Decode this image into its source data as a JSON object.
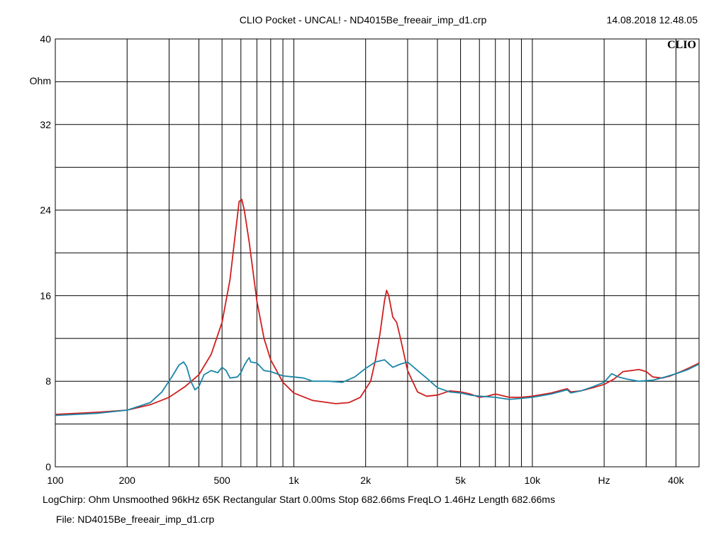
{
  "chart_data": {
    "type": "line",
    "title": "CLIO Pocket - UNCAL! - ND4015Be_freeair_imp_d1.crp",
    "timestamp": "14.08.2018 12.48.05",
    "logo": "CLIO",
    "xlabel": "Hz",
    "ylabel": "Ohm",
    "x_scale": "log",
    "xlim": [
      100,
      50000
    ],
    "ylim": [
      0,
      40
    ],
    "grid": true,
    "x_ticks": [
      {
        "value": 100,
        "label": "100"
      },
      {
        "value": 200,
        "label": "200"
      },
      {
        "value": 500,
        "label": "500"
      },
      {
        "value": 1000,
        "label": "1k"
      },
      {
        "value": 2000,
        "label": "2k"
      },
      {
        "value": 5000,
        "label": "5k"
      },
      {
        "value": 10000,
        "label": "10k"
      },
      {
        "value": 40000,
        "label": "40k"
      }
    ],
    "y_ticks": [
      {
        "value": 0,
        "label": "0"
      },
      {
        "value": 8,
        "label": "8"
      },
      {
        "value": 16,
        "label": "16"
      },
      {
        "value": 24,
        "label": "24"
      },
      {
        "value": 32,
        "label": "32"
      },
      {
        "value": 40,
        "label": "40"
      }
    ],
    "series": [
      {
        "color": "#d01e1e",
        "points": [
          [
            100,
            4.9
          ],
          [
            150,
            5.1
          ],
          [
            200,
            5.3
          ],
          [
            250,
            5.8
          ],
          [
            300,
            6.5
          ],
          [
            350,
            7.5
          ],
          [
            400,
            8.6
          ],
          [
            450,
            10.5
          ],
          [
            500,
            13.5
          ],
          [
            540,
            17.5
          ],
          [
            570,
            22
          ],
          [
            590,
            24.8
          ],
          [
            605,
            25
          ],
          [
            620,
            24
          ],
          [
            650,
            21
          ],
          [
            700,
            15.5
          ],
          [
            750,
            12
          ],
          [
            800,
            10
          ],
          [
            900,
            7.9
          ],
          [
            1000,
            6.9
          ],
          [
            1200,
            6.2
          ],
          [
            1500,
            5.9
          ],
          [
            1700,
            6.0
          ],
          [
            1900,
            6.5
          ],
          [
            2100,
            8
          ],
          [
            2200,
            10
          ],
          [
            2300,
            12.5
          ],
          [
            2400,
            15.5
          ],
          [
            2450,
            16.5
          ],
          [
            2500,
            16
          ],
          [
            2600,
            14
          ],
          [
            2700,
            13.5
          ],
          [
            2800,
            12
          ],
          [
            3000,
            9
          ],
          [
            3300,
            7
          ],
          [
            3600,
            6.6
          ],
          [
            4000,
            6.7
          ],
          [
            4500,
            7.1
          ],
          [
            5000,
            7.0
          ],
          [
            5500,
            6.8
          ],
          [
            6000,
            6.5
          ],
          [
            6500,
            6.6
          ],
          [
            7000,
            6.8
          ],
          [
            8000,
            6.5
          ],
          [
            9000,
            6.5
          ],
          [
            10000,
            6.6
          ],
          [
            12000,
            6.9
          ],
          [
            14000,
            7.3
          ],
          [
            14500,
            7.0
          ],
          [
            16000,
            7.1
          ],
          [
            18000,
            7.4
          ],
          [
            20000,
            7.7
          ],
          [
            22000,
            8.2
          ],
          [
            24000,
            8.9
          ],
          [
            26000,
            9.0
          ],
          [
            28000,
            9.1
          ],
          [
            30000,
            8.9
          ],
          [
            32000,
            8.4
          ],
          [
            35000,
            8.3
          ],
          [
            38000,
            8.5
          ],
          [
            42000,
            8.9
          ],
          [
            46000,
            9.3
          ],
          [
            50000,
            9.7
          ]
        ]
      },
      {
        "color": "#1a86a8",
        "points": [
          [
            100,
            4.8
          ],
          [
            150,
            5.0
          ],
          [
            200,
            5.3
          ],
          [
            250,
            6.0
          ],
          [
            280,
            7.0
          ],
          [
            310,
            8.5
          ],
          [
            330,
            9.5
          ],
          [
            345,
            9.8
          ],
          [
            355,
            9.4
          ],
          [
            370,
            8.0
          ],
          [
            385,
            7.2
          ],
          [
            400,
            7.5
          ],
          [
            420,
            8.6
          ],
          [
            450,
            9.0
          ],
          [
            480,
            8.8
          ],
          [
            500,
            9.3
          ],
          [
            520,
            9.0
          ],
          [
            540,
            8.3
          ],
          [
            580,
            8.4
          ],
          [
            600,
            8.8
          ],
          [
            620,
            9.5
          ],
          [
            640,
            10.0
          ],
          [
            650,
            10.2
          ],
          [
            660,
            9.8
          ],
          [
            700,
            9.7
          ],
          [
            750,
            9.0
          ],
          [
            800,
            8.9
          ],
          [
            900,
            8.5
          ],
          [
            1000,
            8.4
          ],
          [
            1100,
            8.3
          ],
          [
            1200,
            8.0
          ],
          [
            1400,
            8.0
          ],
          [
            1600,
            7.9
          ],
          [
            1800,
            8.4
          ],
          [
            2000,
            9.2
          ],
          [
            2200,
            9.8
          ],
          [
            2400,
            10.0
          ],
          [
            2600,
            9.3
          ],
          [
            2800,
            9.6
          ],
          [
            3000,
            9.8
          ],
          [
            3300,
            9.0
          ],
          [
            3600,
            8.3
          ],
          [
            4000,
            7.4
          ],
          [
            4500,
            7.0
          ],
          [
            5000,
            6.9
          ],
          [
            5500,
            6.7
          ],
          [
            6000,
            6.6
          ],
          [
            7000,
            6.5
          ],
          [
            8000,
            6.3
          ],
          [
            9000,
            6.4
          ],
          [
            10000,
            6.5
          ],
          [
            12000,
            6.8
          ],
          [
            14000,
            7.2
          ],
          [
            14500,
            6.9
          ],
          [
            16000,
            7.1
          ],
          [
            18000,
            7.5
          ],
          [
            20000,
            7.9
          ],
          [
            21500,
            8.7
          ],
          [
            23000,
            8.4
          ],
          [
            25000,
            8.2
          ],
          [
            28000,
            8.0
          ],
          [
            32000,
            8.1
          ],
          [
            36000,
            8.4
          ],
          [
            40000,
            8.7
          ],
          [
            45000,
            9.1
          ],
          [
            50000,
            9.6
          ]
        ]
      }
    ]
  },
  "status_line": "LogChirp:  Ohm   Unsmoothed   96kHz   65K   Rectangular    Start 0.00ms    Stop 682.66ms     FreqLO 1.46Hz     Length 682.66ms",
  "file_line": "File: ND4015Be_freeair_imp_d1.crp"
}
